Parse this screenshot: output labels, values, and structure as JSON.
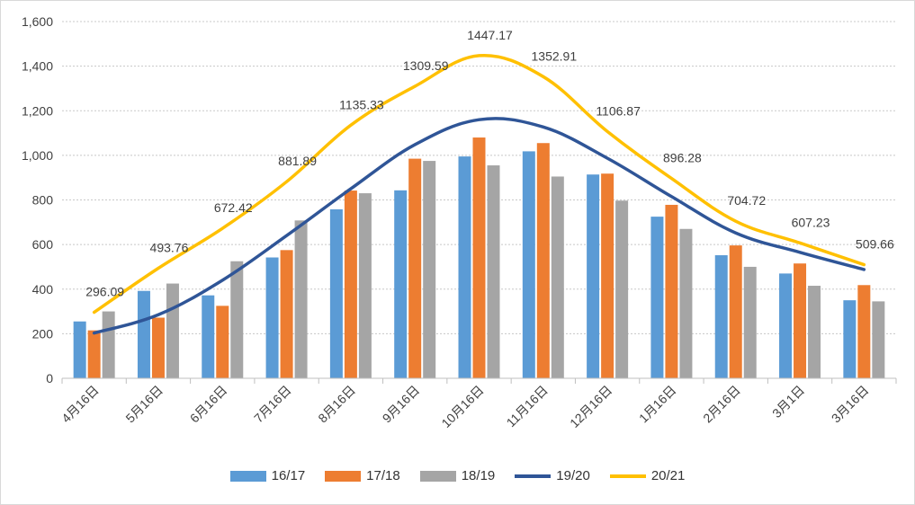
{
  "chart_data": {
    "type": "bar",
    "title": "",
    "xlabel": "",
    "ylabel": "",
    "categories": [
      "4月16日",
      "5月16日",
      "6月16日",
      "7月16日",
      "8月16日",
      "9月16日",
      "10月16日",
      "11月16日",
      "12月16日",
      "1月16日",
      "2月16日",
      "3月1日",
      "3月16日"
    ],
    "ylim": [
      0,
      1600
    ],
    "yticks": [
      "0",
      "200",
      "400",
      "600",
      "800",
      "1,000",
      "1,200",
      "1,400",
      "1,600"
    ],
    "grid": true,
    "legend_position": "bottom",
    "series": [
      {
        "name": "16/17",
        "kind": "bar",
        "color": "#5b9bd5",
        "values": [
          255,
          392,
          372,
          542,
          758,
          843,
          995,
          1018,
          914,
          725,
          552,
          470,
          350
        ]
      },
      {
        "name": "17/18",
        "kind": "bar",
        "color": "#ed7d31",
        "values": [
          215,
          272,
          325,
          575,
          842,
          985,
          1080,
          1055,
          918,
          778,
          596,
          515,
          418
        ]
      },
      {
        "name": "18/19",
        "kind": "bar",
        "color": "#a5a5a5",
        "values": [
          300,
          425,
          525,
          708,
          830,
          975,
          955,
          905,
          797,
          670,
          500,
          415,
          345
        ]
      },
      {
        "name": "19/20",
        "kind": "line",
        "color": "#2f5597",
        "values": [
          203,
          285,
          440,
          640,
          850,
          1048,
          1160,
          1127,
          987,
          815,
          652,
          565,
          488
        ]
      },
      {
        "name": "20/21",
        "kind": "line",
        "color": "#ffc000",
        "values": [
          296.09,
          493.76,
          672.42,
          881.89,
          1135.33,
          1309.59,
          1447.17,
          1352.91,
          1106.87,
          896.28,
          704.72,
          607.23,
          509.66
        ],
        "labels": [
          "296.09",
          "493.76",
          "672.42",
          "881.89",
          "1135.33",
          "1309.59",
          "1447.17",
          "1352.91",
          "1106.87",
          "896.28",
          "704.72",
          "607.23",
          "509.66"
        ]
      }
    ]
  }
}
